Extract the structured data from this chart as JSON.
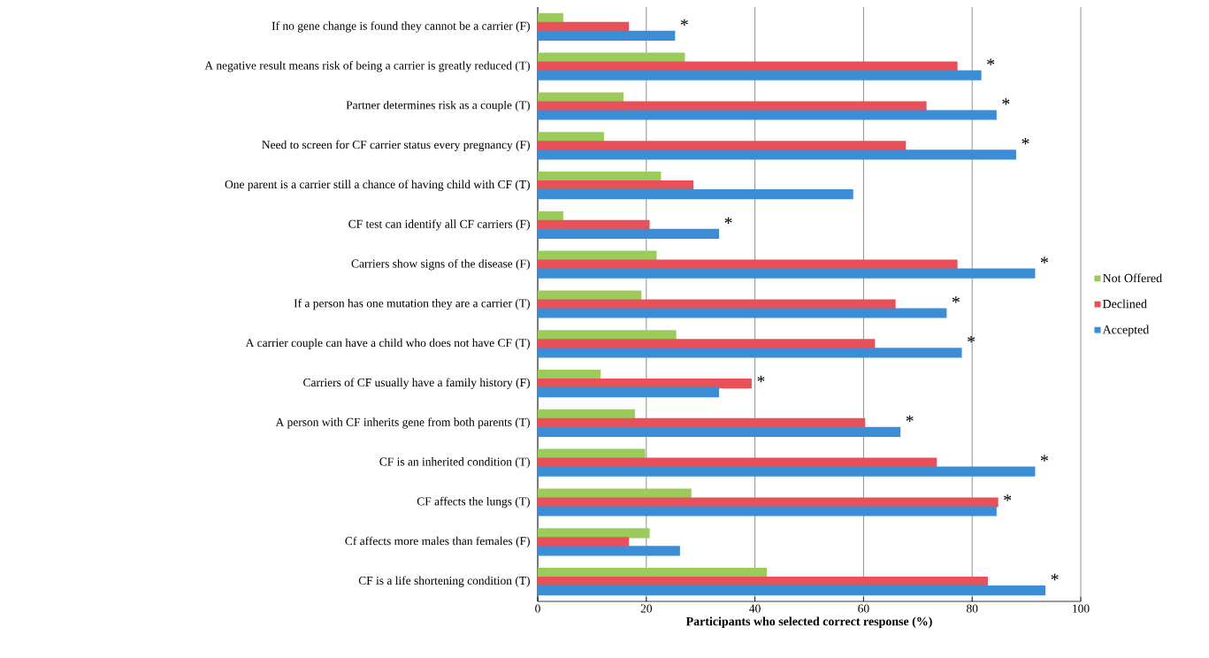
{
  "chart_data": {
    "type": "bar",
    "orientation": "horizontal",
    "xlabel": "Participants who selected correct response (%)",
    "categories": [
      "If no gene change is found they cannot be a carrier (F)",
      "A negative result means risk of being a carrier is greatly reduced (T)",
      "Partner determines risk as a couple (T)",
      "Need to screen for CF carrier status every pregnancy (F)",
      "One parent is a carrier still a chance of having child with CF (T)",
      "CF test can identify all CF carriers (F)",
      "Carriers show signs of the disease (F)",
      "If a person has one mutation they are a carrier (T)",
      "A carrier couple can have a child who does not have CF (T)",
      "Carriers of CF usually have a family history (F)",
      "A person with CF inherits gene from both parents (T)",
      "CF is an inherited condition (T)",
      "CF affects the lungs (T)",
      "Cf affects more males than females (F)",
      "CF is a life shortening condition (T)"
    ],
    "series": [
      {
        "name": "Not Offered",
        "color": "#9bcb5a",
        "values": [
          4.7,
          27.1,
          15.8,
          12.2,
          22.7,
          4.7,
          21.9,
          19.1,
          25.5,
          11.6,
          17.9,
          19.8,
          28.3,
          20.6,
          42.2
        ]
      },
      {
        "name": "Declined",
        "color": "#e8505a",
        "values": [
          16.8,
          77.3,
          71.6,
          67.8,
          28.7,
          20.6,
          77.3,
          65.9,
          62.1,
          39.4,
          60.3,
          73.5,
          84.8,
          16.8,
          82.9
        ]
      },
      {
        "name": "Accepted",
        "color": "#3b8ed6",
        "values": [
          25.3,
          81.7,
          84.5,
          88.1,
          58.1,
          33.4,
          91.6,
          75.3,
          78.1,
          33.4,
          66.8,
          91.6,
          84.5,
          26.2,
          93.5
        ]
      }
    ],
    "xlim": [
      0,
      100
    ],
    "xticks": [
      0,
      20,
      40,
      60,
      80,
      100
    ],
    "grid": "x",
    "legend": "right",
    "annotations": [
      {
        "text": "*",
        "x": 25.3,
        "y": "If no gene change is found they cannot be a carrier (F)"
      },
      {
        "text": "*",
        "x": 81.7,
        "y": "A negative result means risk of being a carrier is greatly reduced (T)"
      },
      {
        "text": "*",
        "x": 84.5,
        "y": "Partner determines risk as a couple (T)"
      },
      {
        "text": "*",
        "x": 88.1,
        "y": "Need to screen for CF carrier status every pregnancy (F)"
      },
      {
        "text": "*",
        "x": 33.4,
        "y": "CF test can identify all CF carriers (F)"
      },
      {
        "text": "*",
        "x": 91.6,
        "y": "Carriers show signs of the disease (F)"
      },
      {
        "text": "*",
        "x": 75.3,
        "y": "If a person has one mutation they are a carrier (T)"
      },
      {
        "text": "*",
        "x": 78.1,
        "y": "A carrier couple can have a child who does not have CF (T)"
      },
      {
        "text": "*",
        "x": 39.4,
        "y": "Carriers of CF usually have a family history (F)"
      },
      {
        "text": "*",
        "x": 66.8,
        "y": "A person with CF inherits gene from both parents (T)"
      },
      {
        "text": "*",
        "x": 91.6,
        "y": "CF is an inherited condition (T)"
      },
      {
        "text": "*",
        "x": 84.8,
        "y": "CF affects the lungs (T)"
      },
      {
        "text": "*",
        "x": 93.5,
        "y": "CF is a life shortening condition (T)"
      }
    ]
  }
}
